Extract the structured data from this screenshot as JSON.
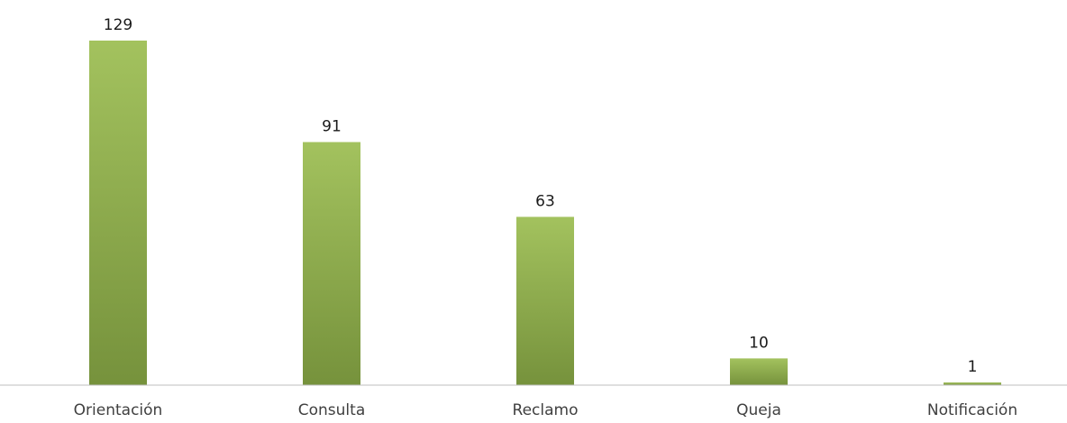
{
  "chart_data": {
    "type": "bar",
    "title": "",
    "xlabel": "",
    "ylabel": "",
    "categories": [
      "Orientación",
      "Consulta",
      "Reclamo",
      "Queja",
      "Notificación"
    ],
    "values": [
      129,
      91,
      63,
      10,
      1
    ],
    "ylim": [
      0,
      129
    ],
    "grid": false,
    "legend": "none",
    "data_labels": true,
    "colors": {
      "bar_top": "#a3c25e",
      "bar_bottom": "#76923c",
      "axis": "#bfbfbf",
      "value_text": "#1a1a1a",
      "category_text": "#404040"
    }
  }
}
